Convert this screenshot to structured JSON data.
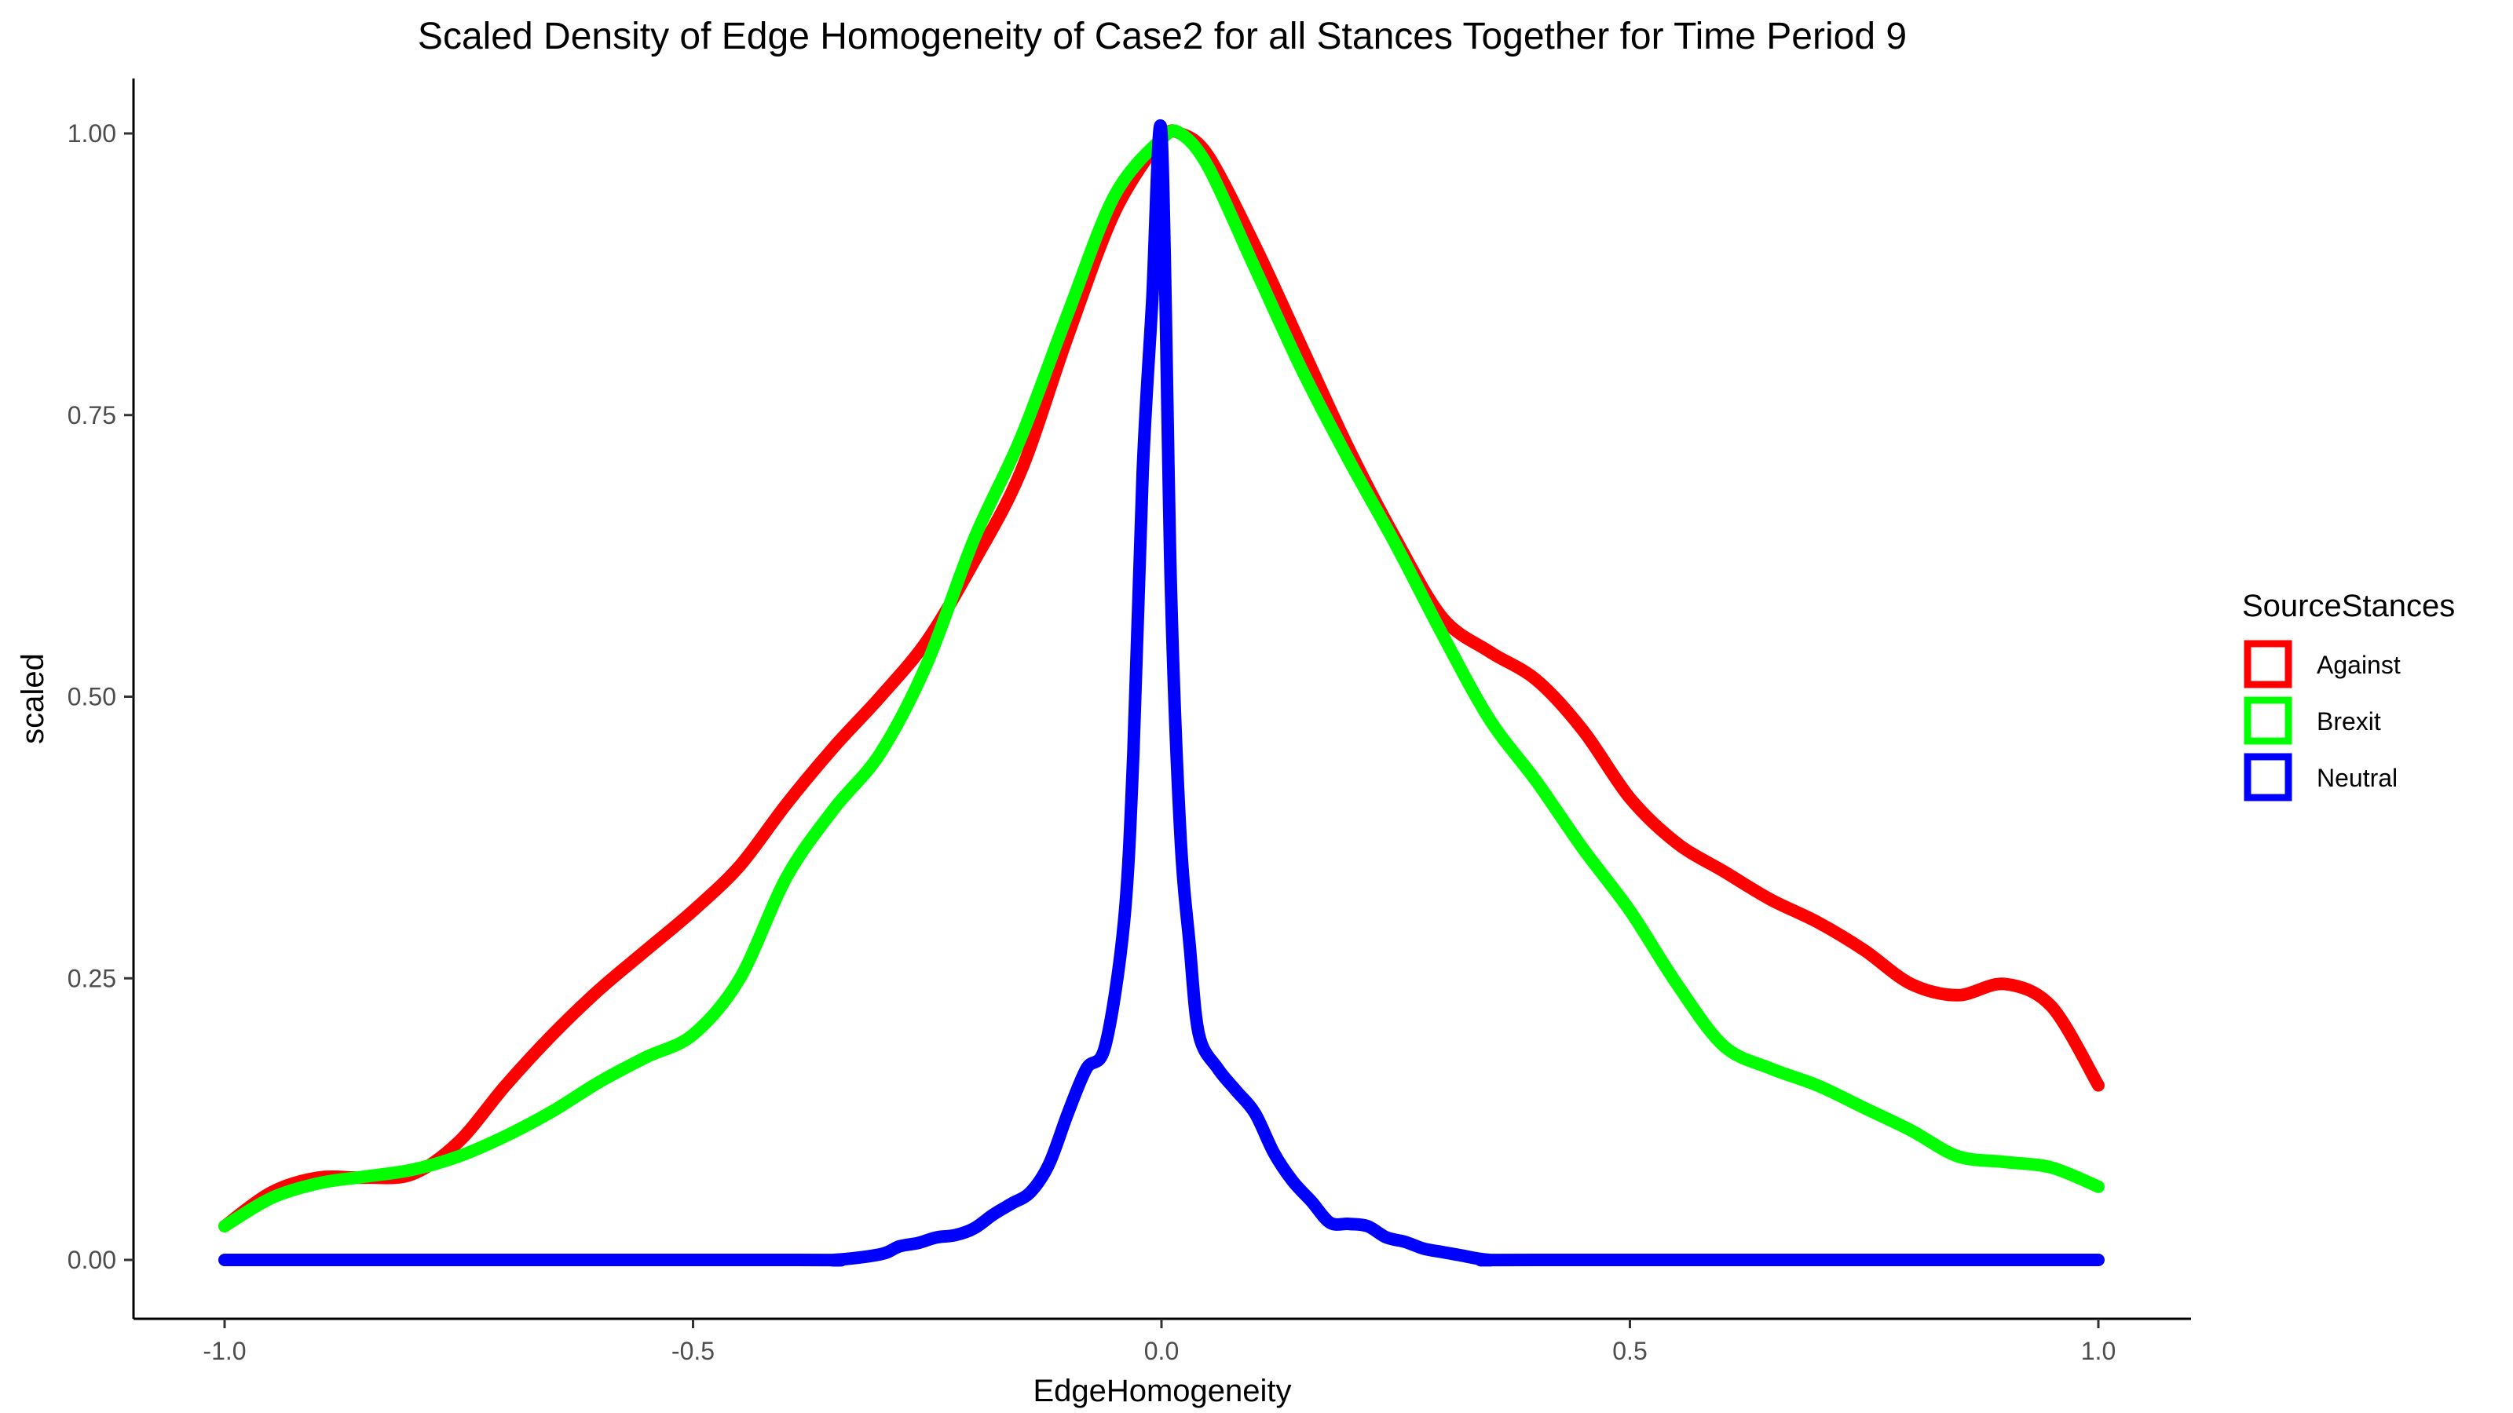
{
  "chart_data": {
    "type": "line",
    "title": "Scaled Density of Edge Homogeneity of Case2 for all Stances Together for Time Period 9",
    "xlabel": "EdgeHomogeneity",
    "ylabel": "scaled",
    "xlim": [
      -1.0,
      1.0
    ],
    "ylim": [
      0.0,
      1.0
    ],
    "x_ticks": [
      -1.0,
      -0.5,
      0.0,
      0.5,
      1.0
    ],
    "x_tick_labels": [
      "-1.0",
      "-0.5",
      "0.0",
      "0.5",
      "1.0"
    ],
    "y_ticks": [
      0.0,
      0.25,
      0.5,
      0.75,
      1.0
    ],
    "y_tick_labels": [
      "0.00",
      "0.25",
      "0.50",
      "0.75",
      "1.00"
    ],
    "grid": false,
    "legend_title": "SourceStances",
    "legend_position": "right",
    "series": [
      {
        "name": "Against",
        "color": "#ff0000",
        "x": [
          -1.0,
          -0.95,
          -0.9,
          -0.85,
          -0.8,
          -0.75,
          -0.7,
          -0.65,
          -0.6,
          -0.55,
          -0.5,
          -0.45,
          -0.4,
          -0.35,
          -0.3,
          -0.25,
          -0.2,
          -0.15,
          -0.1,
          -0.05,
          0.0,
          0.02,
          0.05,
          0.1,
          0.15,
          0.2,
          0.25,
          0.3,
          0.35,
          0.4,
          0.45,
          0.5,
          0.55,
          0.6,
          0.65,
          0.7,
          0.75,
          0.8,
          0.85,
          0.9,
          0.95,
          1.0
        ],
        "y": [
          0.03,
          0.06,
          0.073,
          0.073,
          0.076,
          0.105,
          0.155,
          0.2,
          0.24,
          0.275,
          0.31,
          0.35,
          0.405,
          0.455,
          0.5,
          0.55,
          0.62,
          0.7,
          0.82,
          0.93,
          0.995,
          1.0,
          0.98,
          0.9,
          0.81,
          0.72,
          0.64,
          0.57,
          0.54,
          0.515,
          0.47,
          0.41,
          0.37,
          0.345,
          0.32,
          0.3,
          0.275,
          0.245,
          0.235,
          0.245,
          0.225,
          0.155
        ]
      },
      {
        "name": "Brexit",
        "color": "#00ff00",
        "x": [
          -1.0,
          -0.95,
          -0.9,
          -0.85,
          -0.8,
          -0.75,
          -0.7,
          -0.65,
          -0.6,
          -0.55,
          -0.5,
          -0.45,
          -0.4,
          -0.35,
          -0.3,
          -0.25,
          -0.2,
          -0.15,
          -0.1,
          -0.05,
          0.0,
          0.02,
          0.05,
          0.1,
          0.15,
          0.2,
          0.25,
          0.3,
          0.35,
          0.4,
          0.45,
          0.5,
          0.55,
          0.6,
          0.65,
          0.7,
          0.75,
          0.8,
          0.85,
          0.9,
          0.95,
          1.0
        ],
        "y": [
          0.03,
          0.055,
          0.068,
          0.074,
          0.08,
          0.092,
          0.11,
          0.132,
          0.158,
          0.18,
          0.2,
          0.25,
          0.34,
          0.4,
          0.45,
          0.53,
          0.64,
          0.73,
          0.84,
          0.945,
          0.995,
          1.0,
          0.97,
          0.88,
          0.79,
          0.71,
          0.635,
          0.555,
          0.48,
          0.425,
          0.365,
          0.31,
          0.245,
          0.19,
          0.17,
          0.155,
          0.135,
          0.115,
          0.092,
          0.087,
          0.082,
          0.065
        ]
      },
      {
        "name": "Neutral",
        "color": "#0000ff",
        "x": [
          -1.0,
          -0.4,
          -0.35,
          -0.3,
          -0.28,
          -0.26,
          -0.24,
          -0.22,
          -0.2,
          -0.18,
          -0.16,
          -0.14,
          -0.12,
          -0.1,
          -0.08,
          -0.06,
          -0.04,
          -0.03,
          -0.02,
          -0.01,
          0.0,
          0.01,
          0.02,
          0.03,
          0.04,
          0.06,
          0.08,
          0.1,
          0.12,
          0.14,
          0.16,
          0.18,
          0.2,
          0.22,
          0.24,
          0.26,
          0.28,
          0.3,
          0.32,
          0.35,
          0.4,
          1.0
        ],
        "y": [
          0.0,
          0.0,
          0.0,
          0.005,
          0.012,
          0.015,
          0.02,
          0.022,
          0.028,
          0.04,
          0.05,
          0.06,
          0.085,
          0.13,
          0.17,
          0.19,
          0.3,
          0.45,
          0.7,
          0.85,
          1.0,
          0.6,
          0.38,
          0.28,
          0.2,
          0.17,
          0.15,
          0.13,
          0.095,
          0.07,
          0.052,
          0.033,
          0.032,
          0.03,
          0.02,
          0.016,
          0.01,
          0.007,
          0.004,
          0.0,
          0.0,
          0.0
        ]
      }
    ]
  }
}
